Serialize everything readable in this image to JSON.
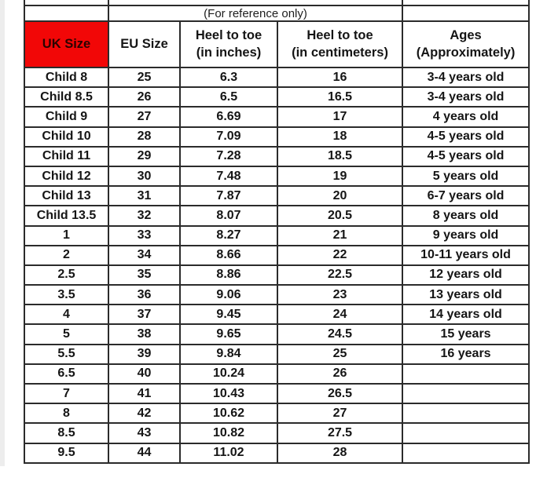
{
  "page": {
    "background": "#ffffff"
  },
  "table": {
    "reference_note": "(For reference only)",
    "headers": [
      [
        "UK Size"
      ],
      [
        "EU Size"
      ],
      [
        "Heel to toe",
        "(in inches)"
      ],
      [
        "Heel to toe",
        "(in centimeters)"
      ],
      [
        "Ages",
        "(Approximately)"
      ]
    ],
    "rows": [
      [
        "Child 8",
        "25",
        "6.3",
        "16",
        "3-4 years old"
      ],
      [
        "Child 8.5",
        "26",
        "6.5",
        "16.5",
        "3-4 years old"
      ],
      [
        "Child 9",
        "27",
        "6.69",
        "17",
        "4 years old"
      ],
      [
        "Child 10",
        "28",
        "7.09",
        "18",
        "4-5 years old"
      ],
      [
        "Child 11",
        "29",
        "7.28",
        "18.5",
        "4-5 years old"
      ],
      [
        "Child 12",
        "30",
        "7.48",
        "19",
        "5 years old"
      ],
      [
        "Child 13",
        "31",
        "7.87",
        "20",
        "6-7 years old"
      ],
      [
        "Child 13.5",
        "32",
        "8.07",
        "20.5",
        "8 years old"
      ],
      [
        "1",
        "33",
        "8.27",
        "21",
        "9 years old"
      ],
      [
        "2",
        "34",
        "8.66",
        "22",
        "10-11 years old"
      ],
      [
        "2.5",
        "35",
        "8.86",
        "22.5",
        "12 years old"
      ],
      [
        "3.5",
        "36",
        "9.06",
        "23",
        "13 years old"
      ],
      [
        "4",
        "37",
        "9.45",
        "24",
        "14 years old"
      ],
      [
        "5",
        "38",
        "9.65",
        "24.5",
        "15 years"
      ],
      [
        "5.5",
        "39",
        "9.84",
        "25",
        "16 years"
      ],
      [
        "6.5",
        "40",
        "10.24",
        "26",
        ""
      ],
      [
        "7",
        "41",
        "10.43",
        "26.5",
        ""
      ],
      [
        "8",
        "42",
        "10.62",
        "27",
        ""
      ],
      [
        "8.5",
        "43",
        "10.82",
        "27.5",
        ""
      ],
      [
        "9.5",
        "44",
        "11.02",
        "28",
        ""
      ]
    ]
  },
  "colors": {
    "uk_header_bg": "#f20707",
    "uk_header_text": "#2a0300",
    "border": "#2b2b2b",
    "text": "#151515"
  }
}
